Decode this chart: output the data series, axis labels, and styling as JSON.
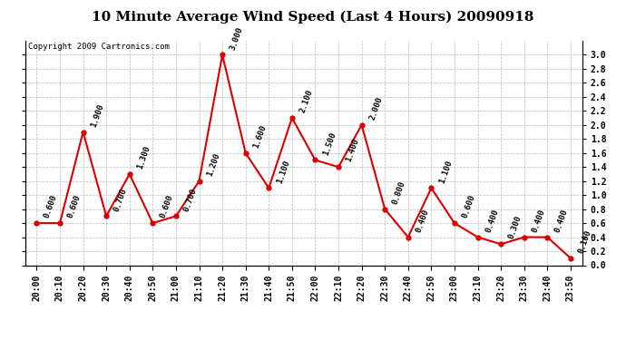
{
  "title": "10 Minute Average Wind Speed (Last 4 Hours) 20090918",
  "copyright": "Copyright 2009 Cartronics.com",
  "x_labels": [
    "20:00",
    "20:10",
    "20:20",
    "20:30",
    "20:40",
    "20:50",
    "21:00",
    "21:10",
    "21:20",
    "21:30",
    "21:40",
    "21:50",
    "22:00",
    "22:10",
    "22:20",
    "22:30",
    "22:40",
    "22:50",
    "23:00",
    "23:10",
    "23:20",
    "23:30",
    "23:40",
    "23:50"
  ],
  "y_values": [
    0.6,
    0.6,
    1.9,
    0.7,
    1.3,
    0.6,
    0.7,
    1.2,
    3.0,
    1.6,
    1.1,
    2.1,
    1.5,
    1.4,
    2.0,
    0.8,
    0.4,
    1.1,
    0.6,
    0.4,
    0.3,
    0.4,
    0.4,
    0.1
  ],
  "line_color": "#dd0000",
  "marker_color": "#dd0000",
  "bg_color": "#ffffff",
  "grid_color": "#bbbbbb",
  "ylim": [
    0.0,
    3.2
  ],
  "yticks": [
    0.0,
    0.2,
    0.4,
    0.6,
    0.8,
    1.0,
    1.2,
    1.4,
    1.6,
    1.8,
    2.0,
    2.2,
    2.4,
    2.6,
    2.8,
    3.0
  ],
  "title_fontsize": 11,
  "tick_fontsize": 7,
  "annotation_fontsize": 6.5,
  "copyright_fontsize": 6.5
}
